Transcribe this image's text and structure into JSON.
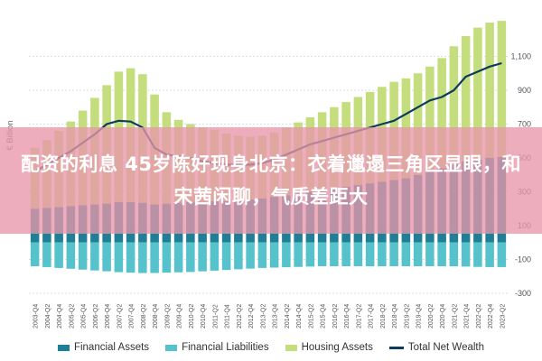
{
  "banner": {
    "text": "配资的利息 45岁陈好现身北京：衣着邋遢三角区显眼，和宋茜闲聊，气质差距大"
  },
  "y_axis_label": "€ Billion",
  "colors": {
    "financial_assets": "#1f7f96",
    "financial_liabilities": "#56c3cc",
    "housing_assets": "#c4dd7d",
    "net_wealth": "#0d3b5c",
    "banner": "#e896aa"
  },
  "legend": [
    {
      "label": "Financial Assets",
      "kind": "rect",
      "color": "#1f7f96"
    },
    {
      "label": "Financial Liabilities",
      "kind": "rect",
      "color": "#56c3cc"
    },
    {
      "label": "Housing Assets",
      "kind": "rect",
      "color": "#c4dd7d"
    },
    {
      "label": "Total Net Wealth",
      "kind": "line",
      "color": "#0d3b5c"
    }
  ],
  "chart_data": {
    "type": "bar",
    "ylabel": "€ Billion",
    "ylim": [
      -300,
      1300
    ],
    "yticks": [
      -300,
      -100,
      100,
      300,
      500,
      700,
      900,
      1100
    ],
    "ytick_labels": [
      "-300",
      "-100",
      "100",
      "300",
      "500",
      "700",
      "900",
      "1,100"
    ],
    "categories": [
      "2003-Q4",
      "2004-Q2",
      "2004-Q4",
      "2005-Q2",
      "2005-Q4",
      "2006-Q2",
      "2006-Q4",
      "2007-Q2",
      "2007-Q4",
      "2008-Q2",
      "2008-Q4",
      "2009-Q2",
      "2009-Q4",
      "2010-Q2",
      "2010-Q4",
      "2011-Q2",
      "2011-Q4",
      "2012-Q2",
      "2012-Q4",
      "2013-Q2",
      "2013-Q4",
      "2014-Q2",
      "2014-Q4",
      "2015-Q2",
      "2015-Q4",
      "2016-Q2",
      "2016-Q4",
      "2017-Q2",
      "2017-Q4",
      "2018-Q2",
      "2018-Q4",
      "2019-Q2",
      "2019-Q4",
      "2020-Q2",
      "2020-Q4",
      "2021-Q2",
      "2021-Q4",
      "2022-Q2",
      "2022-Q4",
      "2023-Q2"
    ],
    "series": [
      {
        "name": "Financial Assets",
        "values": [
          200,
          205,
          210,
          215,
          220,
          225,
          230,
          240,
          240,
          235,
          225,
          230,
          235,
          240,
          240,
          245,
          245,
          250,
          255,
          260,
          270,
          280,
          290,
          300,
          310,
          320,
          330,
          340,
          350,
          360,
          370,
          380,
          400,
          420,
          440,
          460,
          480,
          490,
          500,
          505
        ]
      },
      {
        "name": "Financial Liabilities",
        "values": [
          -140,
          -145,
          -150,
          -155,
          -160,
          -165,
          -170,
          -175,
          -178,
          -180,
          -180,
          -178,
          -176,
          -174,
          -170,
          -166,
          -162,
          -158,
          -154,
          -150,
          -148,
          -146,
          -144,
          -142,
          -140,
          -140,
          -140,
          -140,
          -140,
          -140,
          -140,
          -140,
          -140,
          -140,
          -140,
          -140,
          -142,
          -144,
          -145,
          -145
        ]
      },
      {
        "name": "Housing Assets",
        "values": [
          360,
          400,
          450,
          500,
          560,
          630,
          700,
          770,
          790,
          760,
          650,
          540,
          490,
          460,
          440,
          420,
          400,
          380,
          370,
          370,
          380,
          400,
          420,
          440,
          460,
          480,
          500,
          520,
          540,
          560,
          580,
          590,
          600,
          620,
          650,
          700,
          740,
          780,
          800,
          805
        ]
      },
      {
        "name": "Total Net Wealth",
        "values": [
          420,
          460,
          500,
          540,
          590,
          640,
          700,
          720,
          715,
          680,
          560,
          520,
          510,
          500,
          480,
          470,
          460,
          460,
          460,
          470,
          490,
          520,
          550,
          580,
          600,
          620,
          640,
          660,
          680,
          700,
          720,
          760,
          800,
          840,
          860,
          900,
          980,
          1010,
          1040,
          1060
        ]
      }
    ]
  }
}
